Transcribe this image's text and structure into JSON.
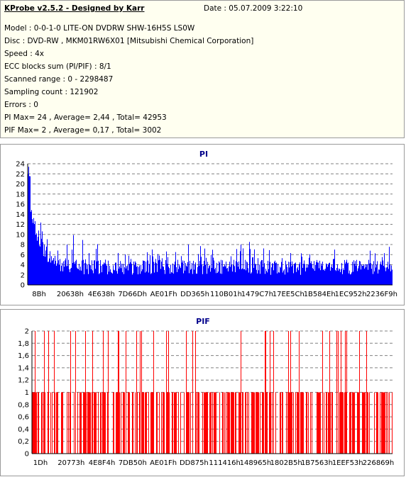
{
  "header": {
    "app_title": "KProbe v2.5.2 - Designed by Karr",
    "date": "Date : 05.07.2009 3:22:10",
    "model": "Model : 0-0-1-0 LITE-ON DVDRW SHW-16H5S  LS0W",
    "disc": "Disc : DVD-RW , MKM01RW6X01 [Mitsubishi Chemical Corporation]",
    "speed": "Speed : 4x",
    "ecc": "ECC blocks sum (PI/PIF) : 8/1",
    "scanned_range": "Scanned range : 0 - 2298487",
    "sampling_count": "Sampling count : 121902",
    "errors": "Errors : 0",
    "pi_summary": "PI Max= 24 , Average= 2,44 , Total= 42953",
    "pif_summary": "PIF Max= 2 , Average= 0,17 , Total= 3002"
  },
  "chart_data": [
    {
      "type": "bar",
      "title": "PI",
      "color": "#0000ff",
      "ylim": [
        0,
        24
      ],
      "y_ticks": [
        "0",
        "2",
        "4",
        "6",
        "8",
        "10",
        "12",
        "14",
        "16",
        "18",
        "20",
        "22",
        "24"
      ],
      "x_ticks": [
        "8Bh",
        "20638h",
        "4E638h",
        "7D66Dh",
        "AE01Fh",
        "DD365h",
        "110B01h",
        "1479C7h",
        "17EE5Ch",
        "1B584Eh",
        "1EC952h",
        "2236F9h"
      ],
      "grid": true,
      "max": 24,
      "average": 2.44,
      "total": 42953
    },
    {
      "type": "bar",
      "title": "PIF",
      "color": "#ff0000",
      "ylim": [
        0,
        2
      ],
      "y_ticks": [
        "0",
        "0,2",
        "0,4",
        "0,6",
        "0,8",
        "1",
        "1,2",
        "1,4",
        "1,6",
        "1,8",
        "2"
      ],
      "x_ticks": [
        "1Dh",
        "20773h",
        "4E8F4h",
        "7DB50h",
        "AE01Fh",
        "DD875h",
        "111416h",
        "148965h",
        "1802B5h",
        "1B7563h",
        "1EEF53h",
        "226869h"
      ],
      "grid": true,
      "max": 2,
      "average": 0.17,
      "total": 3002
    }
  ]
}
